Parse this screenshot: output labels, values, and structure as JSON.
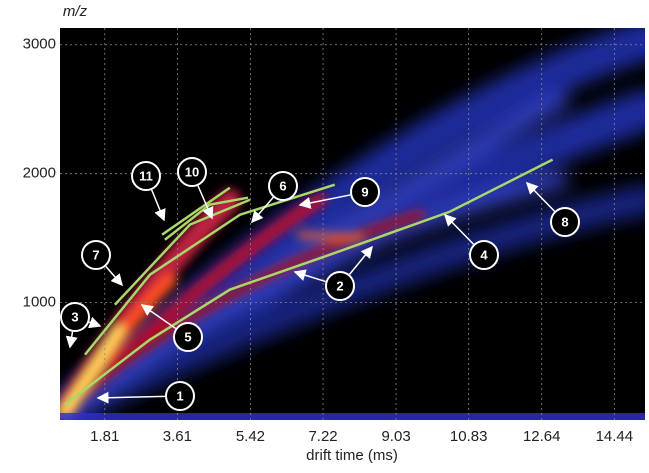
{
  "chart_data": {
    "type": "line",
    "x_label": "drift time (ms)",
    "y_label": "m/z",
    "xlim": [
      0.7,
      15.2
    ],
    "ylim": [
      90,
      3130
    ],
    "xticks": [
      1.81,
      3.61,
      5.42,
      7.22,
      9.03,
      10.83,
      12.64,
      14.44
    ],
    "yticks": [
      1000,
      2000,
      3000
    ],
    "grid": true,
    "series": [
      {
        "color": "#a8d86c",
        "x": [
          0.82,
          2.93,
          4.91,
          7.39,
          10.36,
          12.91
        ],
        "values": [
          209,
          713,
          1101,
          1372,
          1705,
          2109
        ]
      },
      {
        "color": "#a8d86c",
        "x": [
          1.32,
          2.93,
          5.16,
          7.51
        ],
        "values": [
          597,
          1217,
          1682,
          1915
        ]
      },
      {
        "color": "#a8d86c",
        "x": [
          2.06,
          3.92,
          5.41
        ],
        "values": [
          984,
          1605,
          1798
        ]
      },
      {
        "color": "#a8d86c",
        "x": [
          3.3,
          4.41,
          5.36
        ],
        "values": [
          1488,
          1760,
          1814
        ]
      },
      {
        "color": "#a8d86c",
        "x": [
          3.23,
          4.91
        ],
        "values": [
          1527,
          1891
        ]
      }
    ],
    "annotations": [
      "1",
      "2",
      "3",
      "4",
      "5",
      "6",
      "7",
      "8",
      "9",
      "10",
      "11"
    ]
  }
}
